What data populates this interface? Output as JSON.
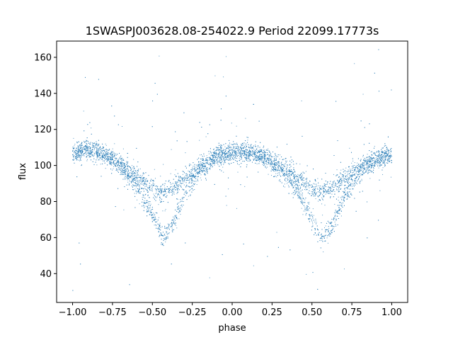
{
  "chart_data": {
    "type": "scatter",
    "title": "1SWASPJ003628.08-254022.9 Period 22099.17773s",
    "xlabel": "phase",
    "ylabel": "flux",
    "xlim": [
      -1.1,
      1.1
    ],
    "ylim": [
      24,
      169
    ],
    "xticks": [
      -1.0,
      -0.75,
      -0.5,
      -0.25,
      0.0,
      0.25,
      0.5,
      0.75,
      1.0
    ],
    "xtick_labels": [
      "−1.00",
      "−0.75",
      "−0.50",
      "−0.25",
      "0.00",
      "0.25",
      "0.50",
      "0.75",
      "1.00"
    ],
    "yticks": [
      40,
      60,
      80,
      100,
      120,
      140,
      160
    ],
    "ytick_labels": [
      "40",
      "60",
      "80",
      "100",
      "120",
      "140",
      "160"
    ],
    "grid": false,
    "marker_color": "#1f77b4",
    "series": [
      {
        "description": "Folded light curve: eclipsing binary, two branches per cycle. Primary minimum near phase -0.43 and 0.57, maxima near 0.07 and -0.93.",
        "x": [
          -1.0,
          -0.9,
          -0.8,
          -0.7,
          -0.6,
          -0.5,
          -0.45,
          -0.43,
          -0.4,
          -0.35,
          -0.3,
          -0.2,
          -0.1,
          0.0,
          0.07,
          0.1,
          0.2,
          0.3,
          0.4,
          0.5,
          0.55,
          0.57,
          0.6,
          0.65,
          0.7,
          0.8,
          0.9,
          1.0
        ],
        "y_upper_branch": [
          107,
          109,
          106,
          101,
          94,
          87,
          85,
          85,
          86,
          89,
          93,
          100,
          105,
          107,
          108,
          107,
          105,
          100,
          94,
          87,
          85,
          85,
          86,
          89,
          93,
          100,
          104,
          106
        ],
        "y_lower_branch": [
          107,
          109,
          106,
          100,
          89,
          72,
          63,
          61,
          63,
          72,
          83,
          97,
          105,
          107,
          108,
          107,
          104,
          98,
          87,
          70,
          62,
          60,
          62,
          71,
          82,
          96,
          103,
          106
        ]
      }
    ]
  }
}
